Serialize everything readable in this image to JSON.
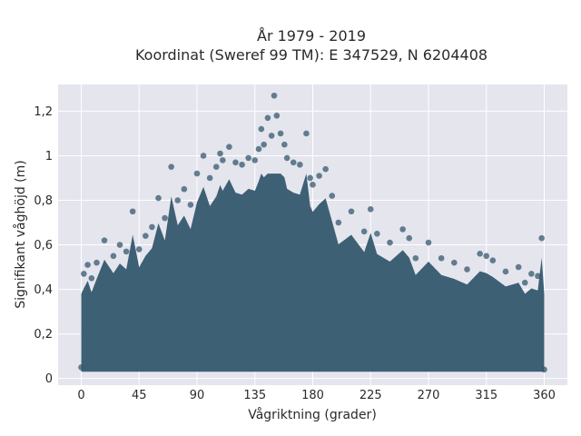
{
  "chart_data": {
    "type": "scatter",
    "title": "År 1979 - 2019",
    "subtitle": "Koordinat (Sweref 99 TM): E 347529, N 6204408",
    "xlabel": "Vågriktning (grader)",
    "ylabel": "Signifikant våghöjd (m)",
    "xlim": [
      -18,
      378
    ],
    "ylim": [
      -0.03,
      1.32
    ],
    "x_ticks": [
      0,
      45,
      90,
      135,
      180,
      225,
      270,
      315,
      360
    ],
    "x_tick_labels": [
      "0",
      "45",
      "90",
      "135",
      "180",
      "225",
      "270",
      "315",
      "360"
    ],
    "y_ticks": [
      0,
      0.2,
      0.4,
      0.6,
      0.8,
      1.0,
      1.2
    ],
    "y_tick_labels": [
      "0",
      "0,2",
      "0,4",
      "0,6",
      "0,8",
      "1",
      "1,2"
    ],
    "grid": true,
    "marker_color": "#34586e",
    "plot_background": "#e5e5ee",
    "series": [
      {
        "x": [
          0,
          2,
          5,
          8,
          12,
          18,
          25,
          30,
          35,
          40,
          45,
          50,
          55,
          60,
          65,
          70,
          75,
          80,
          85,
          90,
          95,
          100,
          105,
          108,
          110,
          115,
          120,
          125,
          130,
          135,
          138,
          140,
          142,
          145,
          148,
          150,
          152,
          155,
          158,
          160,
          165,
          170,
          175,
          178,
          180,
          185,
          190,
          195,
          200,
          210,
          220,
          225,
          230,
          240,
          250,
          255,
          260,
          270,
          280,
          290,
          300,
          310,
          315,
          320,
          330,
          340,
          345,
          350,
          355,
          358,
          360
        ],
        "y": [
          0.05,
          0.47,
          0.51,
          0.45,
          0.52,
          0.62,
          0.55,
          0.6,
          0.57,
          0.75,
          0.58,
          0.64,
          0.68,
          0.81,
          0.72,
          0.95,
          0.8,
          0.85,
          0.78,
          0.92,
          1.0,
          0.9,
          0.95,
          1.01,
          0.98,
          1.04,
          0.97,
          0.96,
          0.99,
          0.98,
          1.03,
          1.12,
          1.05,
          1.17,
          1.09,
          1.27,
          1.18,
          1.1,
          1.05,
          0.99,
          0.97,
          0.96,
          1.1,
          0.9,
          0.87,
          0.91,
          0.94,
          0.82,
          0.7,
          0.75,
          0.66,
          0.76,
          0.65,
          0.61,
          0.67,
          0.63,
          0.54,
          0.61,
          0.54,
          0.52,
          0.49,
          0.56,
          0.55,
          0.53,
          0.48,
          0.5,
          0.43,
          0.47,
          0.46,
          0.63,
          0.04
        ]
      }
    ]
  }
}
